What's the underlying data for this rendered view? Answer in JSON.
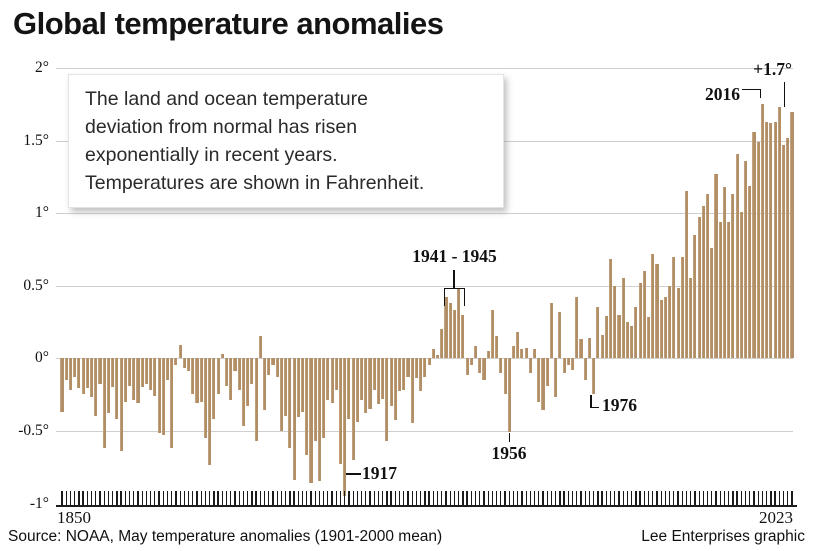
{
  "title": "Global temperature anomalies",
  "textbox": {
    "lines": [
      "The land and ocean temperature",
      "deviation from normal has risen",
      "exponentially in recent years.",
      "Temperatures are shown in Fahrenheit."
    ]
  },
  "annotations": {
    "war_years": "1941 - 1945",
    "y2016": "2016",
    "peak": "+1.7°",
    "y1917": "1917",
    "y1956": "1956",
    "y1976": "1976"
  },
  "axis": {
    "x_min_label": "1850",
    "x_max_label": "2023"
  },
  "footer": {
    "source": "Source: NOAA, May temperature anomalies (1901-2000 mean)",
    "credit": "Lee Enterprises graphic"
  },
  "colors": {
    "bar": "#b5916b",
    "gridline": "#cfcfcf",
    "axis": "#1c1c1c",
    "text": "#111111"
  },
  "chart_data": {
    "type": "bar",
    "title": "Global temperature anomalies",
    "subtitle": "May temperature anomalies (1901-2000 mean), Fahrenheit",
    "unit": "°F",
    "x_start": 1850,
    "x_end": 2023,
    "x_interval": 1,
    "ylim": [
      -1,
      2
    ],
    "grid": true,
    "yticks": [
      {
        "label": "2°",
        "value": 2
      },
      {
        "label": "1.5°",
        "value": 1.5
      },
      {
        "label": "1°",
        "value": 1
      },
      {
        "label": "0.5°",
        "value": 0.5
      },
      {
        "label": "0°",
        "value": 0
      },
      {
        "label": "-0.5°",
        "value": -0.5
      },
      {
        "label": "-1°",
        "value": -1
      }
    ],
    "highlights": {
      "1917": -0.95,
      "1941_1945": [
        0.42,
        0.38,
        0.33,
        0.48,
        0.3
      ],
      "1956": -0.51,
      "1976": -0.25,
      "2016": 1.75,
      "2023": 1.7
    },
    "values": [
      -0.37,
      -0.15,
      -0.22,
      -0.13,
      -0.21,
      -0.25,
      -0.21,
      -0.27,
      -0.4,
      -0.18,
      -0.62,
      -0.38,
      -0.2,
      -0.42,
      -0.64,
      -0.3,
      -0.19,
      -0.29,
      -0.31,
      -0.2,
      -0.18,
      -0.22,
      -0.26,
      -0.52,
      -0.53,
      -0.15,
      -0.62,
      -0.05,
      0.09,
      -0.07,
      -0.09,
      -0.25,
      -0.31,
      -0.3,
      -0.55,
      -0.74,
      -0.42,
      -0.25,
      0.03,
      -0.19,
      -0.29,
      -0.09,
      -0.22,
      -0.47,
      -0.33,
      -0.18,
      -0.57,
      0.15,
      -0.36,
      -0.12,
      -0.05,
      -0.13,
      -0.5,
      -0.4,
      -0.62,
      -0.84,
      -0.41,
      -0.37,
      -0.67,
      -0.86,
      -0.57,
      -0.85,
      -0.55,
      -0.29,
      -0.31,
      -0.22,
      -0.73,
      -0.95,
      -0.42,
      -0.7,
      -0.44,
      -0.29,
      -0.38,
      -0.35,
      -0.22,
      -0.32,
      -0.28,
      -0.57,
      -0.33,
      -0.43,
      -0.23,
      -0.22,
      -0.13,
      -0.45,
      -0.14,
      -0.23,
      -0.13,
      -0.05,
      0.06,
      0.02,
      0.2,
      0.42,
      0.38,
      0.33,
      0.48,
      0.3,
      -0.12,
      -0.05,
      0.08,
      -0.1,
      -0.15,
      0.05,
      0.33,
      0.15,
      -0.1,
      -0.25,
      -0.51,
      0.08,
      0.18,
      0.06,
      0.07,
      -0.1,
      0.06,
      -0.3,
      -0.36,
      -0.19,
      0.38,
      -0.27,
      0.32,
      -0.1,
      -0.05,
      -0.08,
      0.42,
      0.13,
      -0.15,
      0.14,
      -0.25,
      0.35,
      0.16,
      0.29,
      0.68,
      0.5,
      0.3,
      0.55,
      0.25,
      0.22,
      0.35,
      0.52,
      0.6,
      0.28,
      0.72,
      0.65,
      0.4,
      0.42,
      0.5,
      0.7,
      0.48,
      0.7,
      1.15,
      0.55,
      0.85,
      0.97,
      1.05,
      1.13,
      0.76,
      1.27,
      0.94,
      1.18,
      0.94,
      1.13,
      1.41,
      1.01,
      1.36,
      1.19,
      1.56,
      1.49,
      1.75,
      1.63,
      1.62,
      1.63,
      1.73,
      1.47,
      1.52,
      1.7
    ]
  }
}
